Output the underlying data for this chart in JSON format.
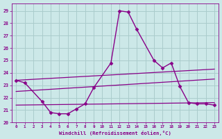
{
  "background_color": "#cce8e8",
  "grid_color": "#aacccc",
  "line_color": "#880088",
  "title": "Windchill (Refroidissement éolien,°C)",
  "xlim": [
    -0.5,
    23.5
  ],
  "ylim": [
    20.0,
    29.6
  ],
  "yticks": [
    20,
    21,
    22,
    23,
    24,
    25,
    26,
    27,
    28,
    29
  ],
  "xticks": [
    0,
    1,
    2,
    3,
    4,
    5,
    6,
    7,
    8,
    9,
    10,
    11,
    12,
    13,
    14,
    15,
    16,
    17,
    18,
    19,
    20,
    21,
    22,
    23
  ],
  "series": [
    {
      "x": [
        0,
        1,
        3,
        4,
        5,
        6,
        7,
        8,
        9,
        11,
        12,
        13,
        14,
        16,
        17,
        18,
        19,
        20,
        21,
        22,
        23
      ],
      "y": [
        23.4,
        23.2,
        21.7,
        20.8,
        20.7,
        20.7,
        21.1,
        21.5,
        22.8,
        24.8,
        29.0,
        28.9,
        27.5,
        25.0,
        24.4,
        24.8,
        22.9,
        21.6,
        21.5,
        21.5,
        21.4
      ],
      "marker": "D",
      "markersize": 2.5,
      "linewidth": 1.0
    },
    {
      "x": [
        0,
        23
      ],
      "y": [
        23.4,
        24.3
      ],
      "marker": null,
      "linewidth": 0.9
    },
    {
      "x": [
        0,
        23
      ],
      "y": [
        22.5,
        23.5
      ],
      "marker": null,
      "linewidth": 0.9
    },
    {
      "x": [
        0,
        23
      ],
      "y": [
        21.4,
        21.6
      ],
      "marker": null,
      "linewidth": 0.9
    }
  ]
}
